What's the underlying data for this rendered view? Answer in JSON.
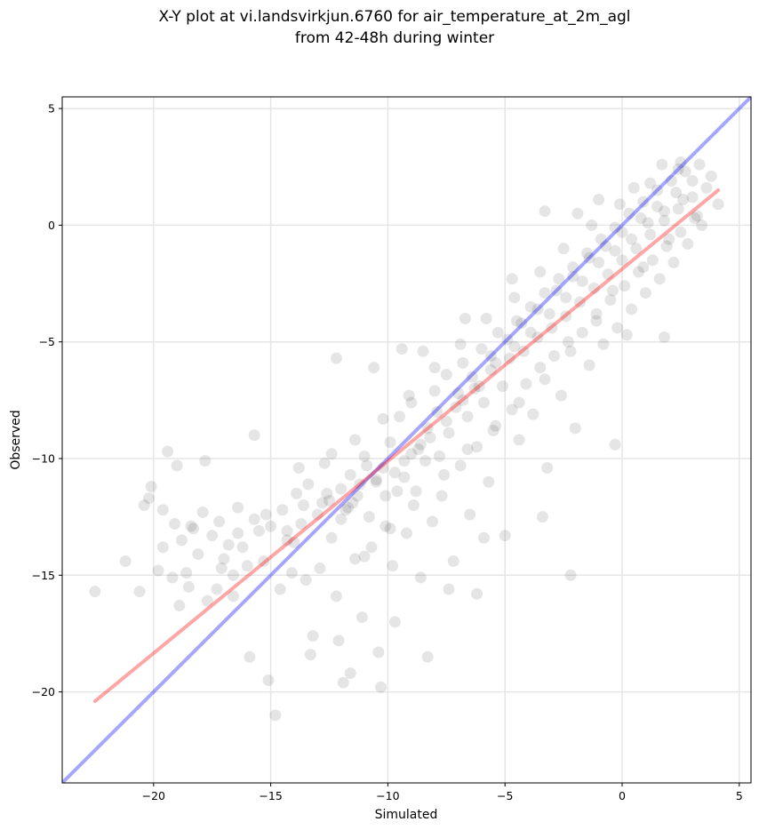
{
  "chart_data": {
    "type": "scatter",
    "title": "X-Y plot at vi.landsvirkjun.6760 for air_temperature_at_2m_agl",
    "subtitle": "from 42-48h during winter",
    "xlabel": "Simulated",
    "ylabel": "Observed",
    "xlim": [
      -23.9,
      5.5
    ],
    "ylim": [
      -23.9,
      5.5
    ],
    "x_ticks": [
      -20,
      -15,
      -10,
      -5,
      0,
      5
    ],
    "y_ticks": [
      -20,
      -15,
      -10,
      -5,
      0,
      5
    ],
    "x_tick_labels": [
      "−20",
      "−15",
      "−10",
      "−5",
      "0",
      "5"
    ],
    "y_tick_labels": [
      "−20",
      "−15",
      "−10",
      "−5",
      "0",
      "5"
    ],
    "grid": true,
    "colors": {
      "points": "#000000",
      "identity_line": "#0000ff",
      "fit_line": "#ff0000",
      "grid": "#e6e6e6"
    },
    "identity_line": {
      "x": [
        -23.9,
        5.5
      ],
      "y": [
        -23.9,
        5.5
      ]
    },
    "fit_line": {
      "x": [
        -22.5,
        4.1
      ],
      "y": [
        -20.4,
        1.5
      ]
    },
    "points": [
      [
        -22.5,
        -15.7
      ],
      [
        -21.2,
        -14.4
      ],
      [
        -20.6,
        -15.7
      ],
      [
        -20.1,
        -11.2
      ],
      [
        -20.2,
        -11.7
      ],
      [
        -19.8,
        -14.8
      ],
      [
        -19.6,
        -12.2
      ],
      [
        -19.4,
        -9.7
      ],
      [
        -19.2,
        -15.1
      ],
      [
        -19.1,
        -12.8
      ],
      [
        -18.9,
        -16.3
      ],
      [
        -18.8,
        -13.5
      ],
      [
        -18.6,
        -14.9
      ],
      [
        -18.5,
        -15.5
      ],
      [
        -18.3,
        -13.0
      ],
      [
        -18.1,
        -14.1
      ],
      [
        -17.9,
        -12.3
      ],
      [
        -17.7,
        -16.1
      ],
      [
        -17.5,
        -13.3
      ],
      [
        -17.3,
        -15.6
      ],
      [
        -17.2,
        -12.7
      ],
      [
        -17.0,
        -14.3
      ],
      [
        -16.8,
        -13.7
      ],
      [
        -16.6,
        -15.0
      ],
      [
        -16.4,
        -12.1
      ],
      [
        -16.2,
        -13.8
      ],
      [
        -16.0,
        -14.6
      ],
      [
        -15.9,
        -18.5
      ],
      [
        -15.7,
        -12.6
      ],
      [
        -15.5,
        -13.1
      ],
      [
        -15.3,
        -14.4
      ],
      [
        -15.1,
        -19.5
      ],
      [
        -15.0,
        -12.9
      ],
      [
        -14.8,
        -21.0
      ],
      [
        -14.6,
        -15.6
      ],
      [
        -14.5,
        -12.2
      ],
      [
        -14.3,
        -13.5
      ],
      [
        -14.1,
        -14.9
      ],
      [
        -13.9,
        -11.5
      ],
      [
        -13.7,
        -12.8
      ],
      [
        -13.5,
        -15.2
      ],
      [
        -13.4,
        -11.1
      ],
      [
        -13.2,
        -17.6
      ],
      [
        -13.0,
        -12.4
      ],
      [
        -12.9,
        -14.7
      ],
      [
        -12.7,
        -10.2
      ],
      [
        -12.5,
        -11.8
      ],
      [
        -12.4,
        -13.4
      ],
      [
        -12.2,
        -15.9
      ],
      [
        -12.0,
        -11.3
      ],
      [
        -11.9,
        -19.6
      ],
      [
        -11.7,
        -12.1
      ],
      [
        -11.6,
        -10.7
      ],
      [
        -11.4,
        -14.3
      ],
      [
        -11.3,
        -11.6
      ],
      [
        -11.1,
        -16.8
      ],
      [
        -11.0,
        -9.9
      ],
      [
        -10.8,
        -12.5
      ],
      [
        -10.7,
        -13.8
      ],
      [
        -10.5,
        -11.0
      ],
      [
        -10.4,
        -18.3
      ],
      [
        -10.2,
        -10.4
      ],
      [
        -10.1,
        -12.9
      ],
      [
        -9.9,
        -9.3
      ],
      [
        -9.8,
        -14.6
      ],
      [
        -9.6,
        -11.4
      ],
      [
        -9.5,
        -8.2
      ],
      [
        -9.3,
        -10.8
      ],
      [
        -9.2,
        -13.2
      ],
      [
        -9.0,
        -7.6
      ],
      [
        -8.9,
        -12.0
      ],
      [
        -8.7,
        -9.6
      ],
      [
        -8.6,
        -15.1
      ],
      [
        -8.4,
        -10.1
      ],
      [
        -8.3,
        -8.7
      ],
      [
        -8.1,
        -12.7
      ],
      [
        -8.0,
        -7.1
      ],
      [
        -7.8,
        -9.9
      ],
      [
        -7.7,
        -11.6
      ],
      [
        -7.5,
        -6.4
      ],
      [
        -7.4,
        -8.9
      ],
      [
        -7.2,
        -14.4
      ],
      [
        -7.1,
        -7.8
      ],
      [
        -6.9,
        -10.3
      ],
      [
        -6.8,
        -5.9
      ],
      [
        -6.6,
        -8.2
      ],
      [
        -6.5,
        -12.4
      ],
      [
        -6.3,
        -7.0
      ],
      [
        -6.2,
        -9.5
      ],
      [
        -6.0,
        -5.3
      ],
      [
        -5.9,
        -7.6
      ],
      [
        -5.7,
        -11.0
      ],
      [
        -5.6,
        -6.2
      ],
      [
        -5.4,
        -8.6
      ],
      [
        -5.3,
        -4.6
      ],
      [
        -5.1,
        -6.9
      ],
      [
        -5.0,
        -13.3
      ],
      [
        -4.8,
        -5.7
      ],
      [
        -4.7,
        -7.9
      ],
      [
        -4.5,
        -4.1
      ],
      [
        -4.4,
        -9.2
      ],
      [
        -4.2,
        -5.4
      ],
      [
        -4.1,
        -6.8
      ],
      [
        -3.9,
        -3.5
      ],
      [
        -3.8,
        -8.1
      ],
      [
        -3.6,
        -4.8
      ],
      [
        -3.5,
        -6.1
      ],
      [
        -3.3,
        -2.9
      ],
      [
        -3.2,
        -10.4
      ],
      [
        -3.0,
        -4.4
      ],
      [
        -2.9,
        -5.6
      ],
      [
        -2.7,
        -2.3
      ],
      [
        -2.6,
        -7.3
      ],
      [
        -2.4,
        -3.9
      ],
      [
        -2.3,
        -5.0
      ],
      [
        -2.1,
        -1.8
      ],
      [
        -2.0,
        -8.7
      ],
      [
        -1.8,
        -3.3
      ],
      [
        -1.7,
        -4.6
      ],
      [
        -1.5,
        -1.2
      ],
      [
        -1.4,
        -6.0
      ],
      [
        -1.2,
        -2.7
      ],
      [
        -1.1,
        -3.8
      ],
      [
        -0.9,
        -0.6
      ],
      [
        -0.8,
        -5.1
      ],
      [
        -0.6,
        -2.1
      ],
      [
        -0.5,
        -3.2
      ],
      [
        -0.3,
        -0.1
      ],
      [
        -0.2,
        -4.4
      ],
      [
        0.0,
        -1.5
      ],
      [
        0.1,
        -2.6
      ],
      [
        0.3,
        0.5
      ],
      [
        0.4,
        -3.6
      ],
      [
        0.6,
        -1.0
      ],
      [
        0.7,
        -2.0
      ],
      [
        0.9,
        1.0
      ],
      [
        1.0,
        -2.9
      ],
      [
        1.2,
        -0.4
      ],
      [
        1.3,
        -1.5
      ],
      [
        1.5,
        1.5
      ],
      [
        1.6,
        -2.3
      ],
      [
        1.8,
        0.2
      ],
      [
        1.9,
        -0.9
      ],
      [
        2.1,
        1.9
      ],
      [
        2.2,
        -1.6
      ],
      [
        2.4,
        0.7
      ],
      [
        2.5,
        -0.3
      ],
      [
        2.7,
        2.3
      ],
      [
        2.8,
        -0.8
      ],
      [
        3.0,
        1.2
      ],
      [
        3.1,
        0.3
      ],
      [
        3.3,
        2.6
      ],
      [
        3.4,
        0.0
      ],
      [
        3.6,
        1.6
      ],
      [
        4.1,
        0.9
      ],
      [
        3.8,
        2.1
      ],
      [
        -2.2,
        -15.0
      ],
      [
        -3.4,
        -12.5
      ],
      [
        -5.9,
        -13.4
      ],
      [
        -6.2,
        -15.8
      ],
      [
        -7.4,
        -15.6
      ],
      [
        -8.3,
        -18.5
      ],
      [
        -10.3,
        -19.8
      ],
      [
        -12.1,
        -17.8
      ],
      [
        -13.3,
        -18.4
      ],
      [
        -11.6,
        -19.2
      ],
      [
        -9.7,
        -17.0
      ],
      [
        -16.6,
        -15.9
      ],
      [
        -17.8,
        -10.1
      ],
      [
        -19.0,
        -10.3
      ],
      [
        -15.7,
        -9.0
      ],
      [
        -12.2,
        -5.7
      ],
      [
        -10.6,
        -6.1
      ],
      [
        -8.5,
        -5.4
      ],
      [
        -9.4,
        -5.3
      ],
      [
        -6.7,
        -4.0
      ],
      [
        -4.7,
        -2.3
      ],
      [
        -3.3,
        0.6
      ],
      [
        -1.9,
        0.5
      ],
      [
        -1.0,
        1.1
      ],
      [
        0.5,
        1.6
      ],
      [
        1.7,
        2.6
      ],
      [
        2.5,
        2.7
      ],
      [
        0.2,
        -4.7
      ],
      [
        1.8,
        -4.8
      ],
      [
        -0.3,
        -9.4
      ],
      [
        -14.3,
        -13.1
      ],
      [
        -13.6,
        -12.0
      ],
      [
        -12.8,
        -11.9
      ],
      [
        -12.0,
        -12.6
      ],
      [
        -11.2,
        -11.1
      ],
      [
        -10.5,
        -10.9
      ],
      [
        -9.7,
        -10.6
      ],
      [
        -9.0,
        -9.8
      ],
      [
        -8.2,
        -9.1
      ],
      [
        -7.5,
        -8.4
      ],
      [
        -6.8,
        -7.5
      ],
      [
        -6.1,
        -6.9
      ],
      [
        -5.4,
        -5.9
      ],
      [
        -4.6,
        -5.2
      ],
      [
        -3.9,
        -4.6
      ],
      [
        -3.1,
        -3.8
      ],
      [
        -2.4,
        -3.1
      ],
      [
        -1.7,
        -2.4
      ],
      [
        -1.0,
        -1.6
      ],
      [
        -0.3,
        -1.1
      ],
      [
        0.4,
        -0.6
      ],
      [
        1.1,
        0.1
      ],
      [
        1.8,
        0.6
      ],
      [
        2.6,
        1.1
      ],
      [
        -12.6,
        -11.5
      ],
      [
        -11.8,
        -12.2
      ],
      [
        -11.5,
        -11.9
      ],
      [
        -10.9,
        -10.3
      ],
      [
        -10.1,
        -11.6
      ],
      [
        -9.3,
        -10.1
      ],
      [
        -8.6,
        -9.4
      ],
      [
        -7.9,
        -8.0
      ],
      [
        -7.0,
        -7.2
      ],
      [
        -6.4,
        -6.5
      ],
      [
        -5.6,
        -5.6
      ],
      [
        -4.9,
        -4.9
      ],
      [
        -4.3,
        -4.2
      ],
      [
        -3.6,
        -3.6
      ],
      [
        -2.8,
        -2.8
      ],
      [
        -2.1,
        -2.2
      ],
      [
        -1.4,
        -1.4
      ],
      [
        -0.7,
        -0.9
      ],
      [
        0.0,
        -0.3
      ],
      [
        0.8,
        0.3
      ],
      [
        1.5,
        0.8
      ],
      [
        2.3,
        1.4
      ],
      [
        3.0,
        1.9
      ],
      [
        -16.4,
        -13.2
      ],
      [
        -15.2,
        -12.4
      ],
      [
        -14.0,
        -13.6
      ],
      [
        -17.1,
        -14.7
      ],
      [
        -18.4,
        -12.9
      ],
      [
        -19.6,
        -13.8
      ],
      [
        -20.4,
        -12.0
      ],
      [
        -11.0,
        -14.2
      ],
      [
        -9.9,
        -13.0
      ],
      [
        -8.8,
        -11.4
      ],
      [
        -7.6,
        -10.7
      ],
      [
        -6.6,
        -9.6
      ],
      [
        -5.5,
        -8.8
      ],
      [
        -4.4,
        -7.6
      ],
      [
        -3.3,
        -6.6
      ],
      [
        -2.2,
        -5.4
      ],
      [
        -1.1,
        -4.1
      ],
      [
        -0.4,
        -2.8
      ],
      [
        0.9,
        -1.8
      ],
      [
        2.0,
        -0.6
      ],
      [
        3.2,
        0.4
      ],
      [
        -13.8,
        -10.4
      ],
      [
        -12.4,
        -9.8
      ],
      [
        -11.4,
        -9.2
      ],
      [
        -10.2,
        -8.3
      ],
      [
        -9.1,
        -7.3
      ],
      [
        -8.0,
        -6.1
      ],
      [
        -6.9,
        -5.1
      ],
      [
        -5.8,
        -4.0
      ],
      [
        -4.6,
        -3.1
      ],
      [
        -3.5,
        -2.0
      ],
      [
        -2.5,
        -1.0
      ],
      [
        -1.3,
        0.0
      ],
      [
        -0.1,
        0.9
      ],
      [
        1.2,
        1.8
      ],
      [
        2.4,
        2.4
      ]
    ]
  }
}
